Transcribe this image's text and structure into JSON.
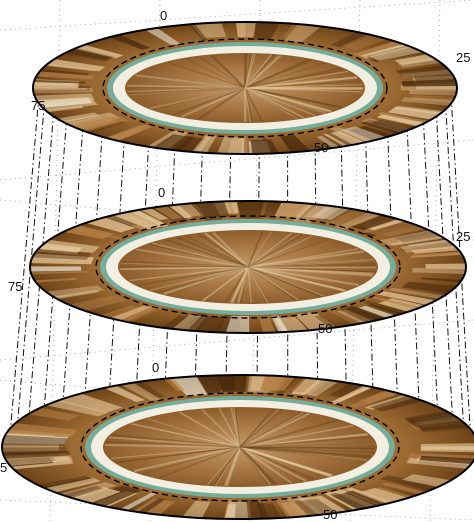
{
  "figure": {
    "disks": [
      {
        "id": "top",
        "labels": {
          "top": "0",
          "right": "25",
          "left": "75",
          "bottom": "50"
        }
      },
      {
        "id": "middle",
        "labels": {
          "top": "0",
          "right": "25",
          "left": "75",
          "bottom": "50"
        }
      },
      {
        "id": "bottom",
        "labels": {
          "top": "0",
          "right": "",
          "left": "5",
          "bottom": "50"
        }
      }
    ],
    "colors": {
      "outer_ring": "#8a5a25",
      "inner_disk": "#a87845",
      "inner_highlight": "#e6c79a",
      "dark_speckle": "#4a2a0c",
      "cyan_ring": "#6fb7ad",
      "pale_ring": "#f2efe2",
      "outline": "#000000",
      "axis_grid": "#9a9a9a"
    }
  }
}
